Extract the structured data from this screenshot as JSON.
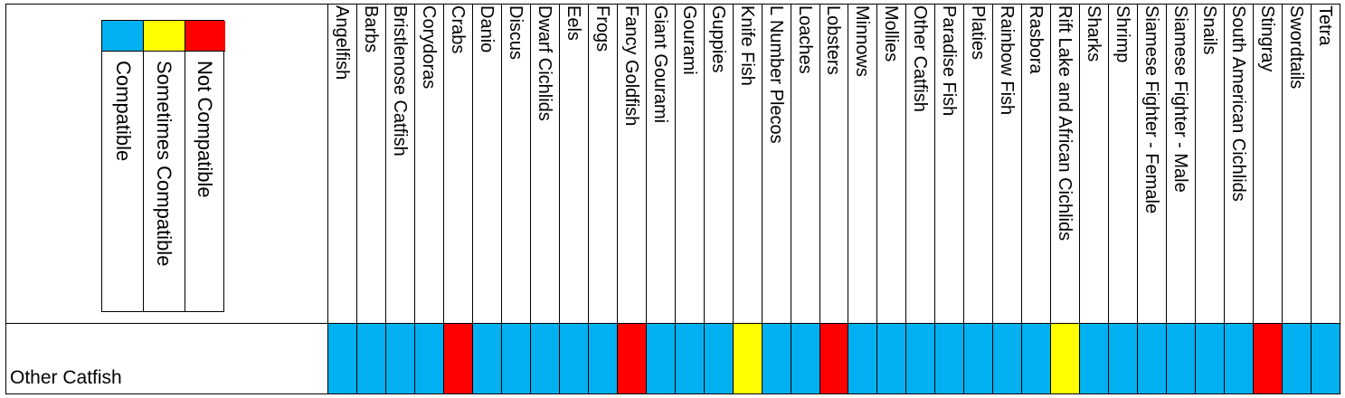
{
  "legend": {
    "items": [
      {
        "label": "Compatible",
        "color": "#00b0f0"
      },
      {
        "label": "Sometimes Compatible",
        "color": "#ffff00"
      },
      {
        "label": "Not Compatible",
        "color": "#ff0000"
      }
    ]
  },
  "row": {
    "label": "Other Catfish",
    "colors": {
      "compatible": "#00b0f0",
      "sometimes": "#ffff00",
      "not": "#ff0000"
    },
    "columns": [
      {
        "name": "Angelfish",
        "status": "compatible"
      },
      {
        "name": "Barbs",
        "status": "compatible"
      },
      {
        "name": "Bristlenose Catfish",
        "status": "compatible"
      },
      {
        "name": "Corydoras",
        "status": "compatible"
      },
      {
        "name": "Crabs",
        "status": "not"
      },
      {
        "name": "Danio",
        "status": "compatible"
      },
      {
        "name": "Discus",
        "status": "compatible"
      },
      {
        "name": "Dwarf Cichlids",
        "status": "compatible"
      },
      {
        "name": "Eels",
        "status": "compatible"
      },
      {
        "name": "Frogs",
        "status": "compatible"
      },
      {
        "name": "Fancy Goldfish",
        "status": "not"
      },
      {
        "name": "Giant Gourami",
        "status": "compatible"
      },
      {
        "name": "Gourami",
        "status": "compatible"
      },
      {
        "name": "Guppies",
        "status": "compatible"
      },
      {
        "name": "Knife Fish",
        "status": "sometimes"
      },
      {
        "name": "L Number Plecos",
        "status": "compatible"
      },
      {
        "name": "Loaches",
        "status": "compatible"
      },
      {
        "name": "Lobsters",
        "status": "not"
      },
      {
        "name": "Minnows",
        "status": "compatible"
      },
      {
        "name": "Mollies",
        "status": "compatible"
      },
      {
        "name": "Other Catfish",
        "status": "compatible"
      },
      {
        "name": "Paradise Fish",
        "status": "compatible"
      },
      {
        "name": "Platies",
        "status": "compatible"
      },
      {
        "name": "Rainbow Fish",
        "status": "compatible"
      },
      {
        "name": "Rasbora",
        "status": "compatible"
      },
      {
        "name": "Rift Lake and African Cichlids",
        "status": "sometimes"
      },
      {
        "name": "Sharks",
        "status": "compatible"
      },
      {
        "name": "Shrimp",
        "status": "compatible"
      },
      {
        "name": "Siamese Fighter - Female",
        "status": "compatible"
      },
      {
        "name": "Siamese Fighter - Male",
        "status": "compatible"
      },
      {
        "name": "Snails",
        "status": "compatible"
      },
      {
        "name": "South American Cichlids",
        "status": "compatible"
      },
      {
        "name": "Stingray",
        "status": "not"
      },
      {
        "name": "Swordtails",
        "status": "compatible"
      },
      {
        "name": "Tetra",
        "status": "compatible"
      }
    ]
  }
}
